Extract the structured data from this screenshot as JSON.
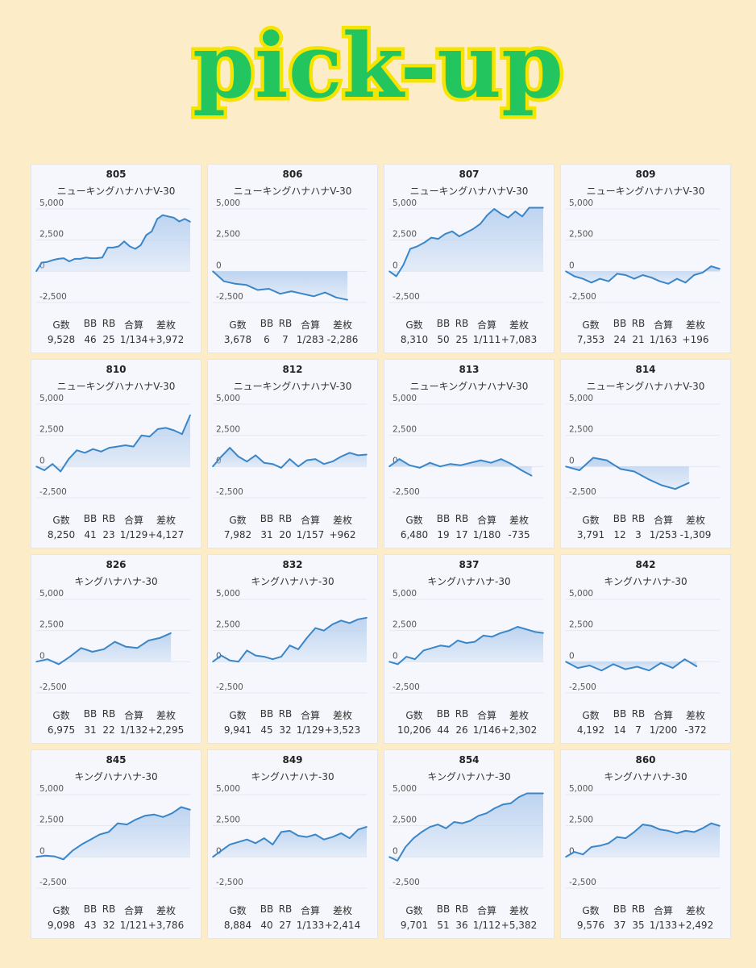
{
  "headline": "pick-up",
  "colors": {
    "background": "#fdecc8",
    "headline_fill": "#22c55e",
    "headline_stroke": "#f5e400",
    "line": "#3a86c8",
    "area": "#b7d0ef"
  },
  "stat_headers": [
    "G数",
    "BB",
    "RB",
    "合算",
    "差枚"
  ],
  "y_ticks": [
    "5,000",
    "2,500",
    "0",
    "-2,500"
  ],
  "chart_data": [
    {
      "type": "area",
      "title": "805",
      "subtitle": "ニューキングハナハナV-30",
      "ylim": [
        -2500,
        5000
      ],
      "y_ticks": [
        5000,
        2500,
        0,
        -2500
      ],
      "values": [
        0,
        700,
        750,
        900,
        1000,
        1050,
        800,
        1000,
        1000,
        1100,
        1050,
        1050,
        1100,
        1900,
        1900,
        2000,
        2400,
        2000,
        1800,
        2100,
        2900,
        3200,
        4200,
        4500,
        4400,
        4300,
        4000,
        4200,
        3972
      ],
      "stats": [
        "9,528",
        "46",
        "25",
        "1/134",
        "+3,972"
      ]
    },
    {
      "type": "area",
      "title": "806",
      "subtitle": "ニューキングハナハナV-30",
      "ylim": [
        -2500,
        5000
      ],
      "y_ticks": [
        5000,
        2500,
        0,
        -2500
      ],
      "values": [
        0,
        -800,
        -1000,
        -1100,
        -1500,
        -1400,
        -1800,
        -1600,
        -1800,
        -2000,
        -1700,
        -2100,
        -2286
      ],
      "stats": [
        "3,678",
        "6",
        "7",
        "1/283",
        "-2,286"
      ]
    },
    {
      "type": "area",
      "title": "807",
      "subtitle": "ニューキングハナハナV-30",
      "ylim": [
        -2500,
        5000
      ],
      "y_ticks": [
        5000,
        2500,
        0,
        -2500
      ],
      "values": [
        0,
        -400,
        500,
        1800,
        2000,
        2300,
        2700,
        2600,
        3000,
        3200,
        2800,
        3100,
        3400,
        3800,
        4500,
        5000,
        4600,
        4300,
        4800,
        4400,
        5100,
        5200,
        7083
      ],
      "stats": [
        "8,310",
        "50",
        "25",
        "1/111",
        "+7,083"
      ]
    },
    {
      "type": "area",
      "title": "809",
      "subtitle": "ニューキングハナハナV-30",
      "ylim": [
        -2500,
        5000
      ],
      "y_ticks": [
        5000,
        2500,
        0,
        -2500
      ],
      "values": [
        0,
        -400,
        -600,
        -900,
        -600,
        -800,
        -200,
        -300,
        -600,
        -300,
        -500,
        -800,
        -1000,
        -600,
        -900,
        -300,
        -100,
        400,
        196
      ],
      "stats": [
        "7,353",
        "24",
        "21",
        "1/163",
        "+196"
      ]
    },
    {
      "type": "area",
      "title": "810",
      "subtitle": "ニューキングハナハナV-30",
      "ylim": [
        -2500,
        5000
      ],
      "y_ticks": [
        5000,
        2500,
        0,
        -2500
      ],
      "values": [
        0,
        -300,
        200,
        -400,
        600,
        1300,
        1100,
        1400,
        1200,
        1500,
        1600,
        1700,
        1600,
        2500,
        2400,
        3000,
        3100,
        2900,
        2600,
        4127
      ],
      "stats": [
        "8,250",
        "41",
        "23",
        "1/129",
        "+4,127"
      ]
    },
    {
      "type": "area",
      "title": "812",
      "subtitle": "ニューキングハナハナV-30",
      "ylim": [
        -2500,
        5000
      ],
      "y_ticks": [
        5000,
        2500,
        0,
        -2500
      ],
      "values": [
        0,
        800,
        1500,
        800,
        400,
        900,
        300,
        200,
        -100,
        600,
        0,
        500,
        600,
        200,
        400,
        800,
        1100,
        900,
        962
      ],
      "stats": [
        "7,982",
        "31",
        "20",
        "1/157",
        "+962"
      ]
    },
    {
      "type": "area",
      "title": "813",
      "subtitle": "ニューキングハナハナV-30",
      "ylim": [
        -2500,
        5000
      ],
      "y_ticks": [
        5000,
        2500,
        0,
        -2500
      ],
      "values": [
        0,
        600,
        100,
        -100,
        300,
        0,
        200,
        100,
        300,
        500,
        300,
        600,
        200,
        -300,
        -735
      ],
      "stats": [
        "6,480",
        "19",
        "17",
        "1/180",
        "-735"
      ]
    },
    {
      "type": "area",
      "title": "814",
      "subtitle": "ニューキングハナハナV-30",
      "ylim": [
        -2500,
        5000
      ],
      "y_ticks": [
        5000,
        2500,
        0,
        -2500
      ],
      "values": [
        0,
        -300,
        700,
        500,
        -200,
        -400,
        -1000,
        -1500,
        -1800,
        -1309
      ],
      "stats": [
        "3,791",
        "12",
        "3",
        "1/253",
        "-1,309"
      ]
    },
    {
      "type": "area",
      "title": "826",
      "subtitle": "キングハナハナ-30",
      "ylim": [
        -2500,
        5000
      ],
      "y_ticks": [
        5000,
        2500,
        0,
        -2500
      ],
      "values": [
        0,
        200,
        -200,
        400,
        1100,
        800,
        1000,
        1600,
        1200,
        1100,
        1700,
        1900,
        2295
      ],
      "stats": [
        "6,975",
        "31",
        "22",
        "1/132",
        "+2,295"
      ]
    },
    {
      "type": "area",
      "title": "832",
      "subtitle": "キングハナハナ-30",
      "ylim": [
        -2500,
        5000
      ],
      "y_ticks": [
        5000,
        2500,
        0,
        -2500
      ],
      "values": [
        0,
        500,
        100,
        0,
        900,
        500,
        400,
        200,
        400,
        1300,
        1000,
        1900,
        2700,
        2500,
        3000,
        3300,
        3100,
        3400,
        3523
      ],
      "stats": [
        "9,941",
        "45",
        "32",
        "1/129",
        "+3,523"
      ]
    },
    {
      "type": "area",
      "title": "837",
      "subtitle": "キングハナハナ-30",
      "ylim": [
        -2500,
        5000
      ],
      "y_ticks": [
        5000,
        2500,
        0,
        -2500
      ],
      "values": [
        0,
        -200,
        400,
        200,
        900,
        1100,
        1300,
        1200,
        1700,
        1500,
        1600,
        2100,
        2000,
        2300,
        2500,
        2800,
        2600,
        2400,
        2302
      ],
      "stats": [
        "10,206",
        "44",
        "26",
        "1/146",
        "+2,302"
      ]
    },
    {
      "type": "area",
      "title": "842",
      "subtitle": "キングハナハナ-30",
      "ylim": [
        -2500,
        5000
      ],
      "y_ticks": [
        5000,
        2500,
        0,
        -2500
      ],
      "values": [
        0,
        -500,
        -300,
        -700,
        -200,
        -600,
        -400,
        -700,
        -100,
        -500,
        200,
        -372
      ],
      "stats": [
        "4,192",
        "14",
        "7",
        "1/200",
        "-372"
      ]
    },
    {
      "type": "area",
      "title": "845",
      "subtitle": "キングハナハナ-30",
      "ylim": [
        -2500,
        5000
      ],
      "y_ticks": [
        5000,
        2500,
        0,
        -2500
      ],
      "values": [
        0,
        100,
        50,
        -200,
        500,
        1000,
        1400,
        1800,
        2000,
        2700,
        2600,
        3000,
        3300,
        3400,
        3200,
        3500,
        4000,
        3786
      ],
      "stats": [
        "9,098",
        "43",
        "32",
        "1/121",
        "+3,786"
      ]
    },
    {
      "type": "area",
      "title": "849",
      "subtitle": "キングハナハナ-30",
      "ylim": [
        -2500,
        5000
      ],
      "y_ticks": [
        5000,
        2500,
        0,
        -2500
      ],
      "values": [
        0,
        500,
        1000,
        1200,
        1400,
        1100,
        1500,
        1000,
        2000,
        2100,
        1700,
        1600,
        1800,
        1400,
        1600,
        1900,
        1500,
        2200,
        2414
      ],
      "stats": [
        "8,884",
        "40",
        "27",
        "1/133",
        "+2,414"
      ]
    },
    {
      "type": "area",
      "title": "854",
      "subtitle": "キングハナハナ-30",
      "ylim": [
        -2500,
        5000
      ],
      "y_ticks": [
        5000,
        2500,
        0,
        -2500
      ],
      "values": [
        0,
        -300,
        800,
        1500,
        2000,
        2400,
        2600,
        2300,
        2800,
        2700,
        2900,
        3300,
        3500,
        3900,
        4200,
        4300,
        4800,
        5100,
        5200,
        5382
      ],
      "stats": [
        "9,701",
        "51",
        "36",
        "1/112",
        "+5,382"
      ]
    },
    {
      "type": "area",
      "title": "860",
      "subtitle": "キングハナハナ-30",
      "ylim": [
        -2500,
        5000
      ],
      "y_ticks": [
        5000,
        2500,
        0,
        -2500
      ],
      "values": [
        0,
        400,
        200,
        800,
        900,
        1100,
        1600,
        1500,
        2000,
        2600,
        2500,
        2200,
        2100,
        1900,
        2100,
        2000,
        2300,
        2700,
        2492
      ],
      "stats": [
        "9,576",
        "37",
        "35",
        "1/133",
        "+2,492"
      ]
    }
  ]
}
